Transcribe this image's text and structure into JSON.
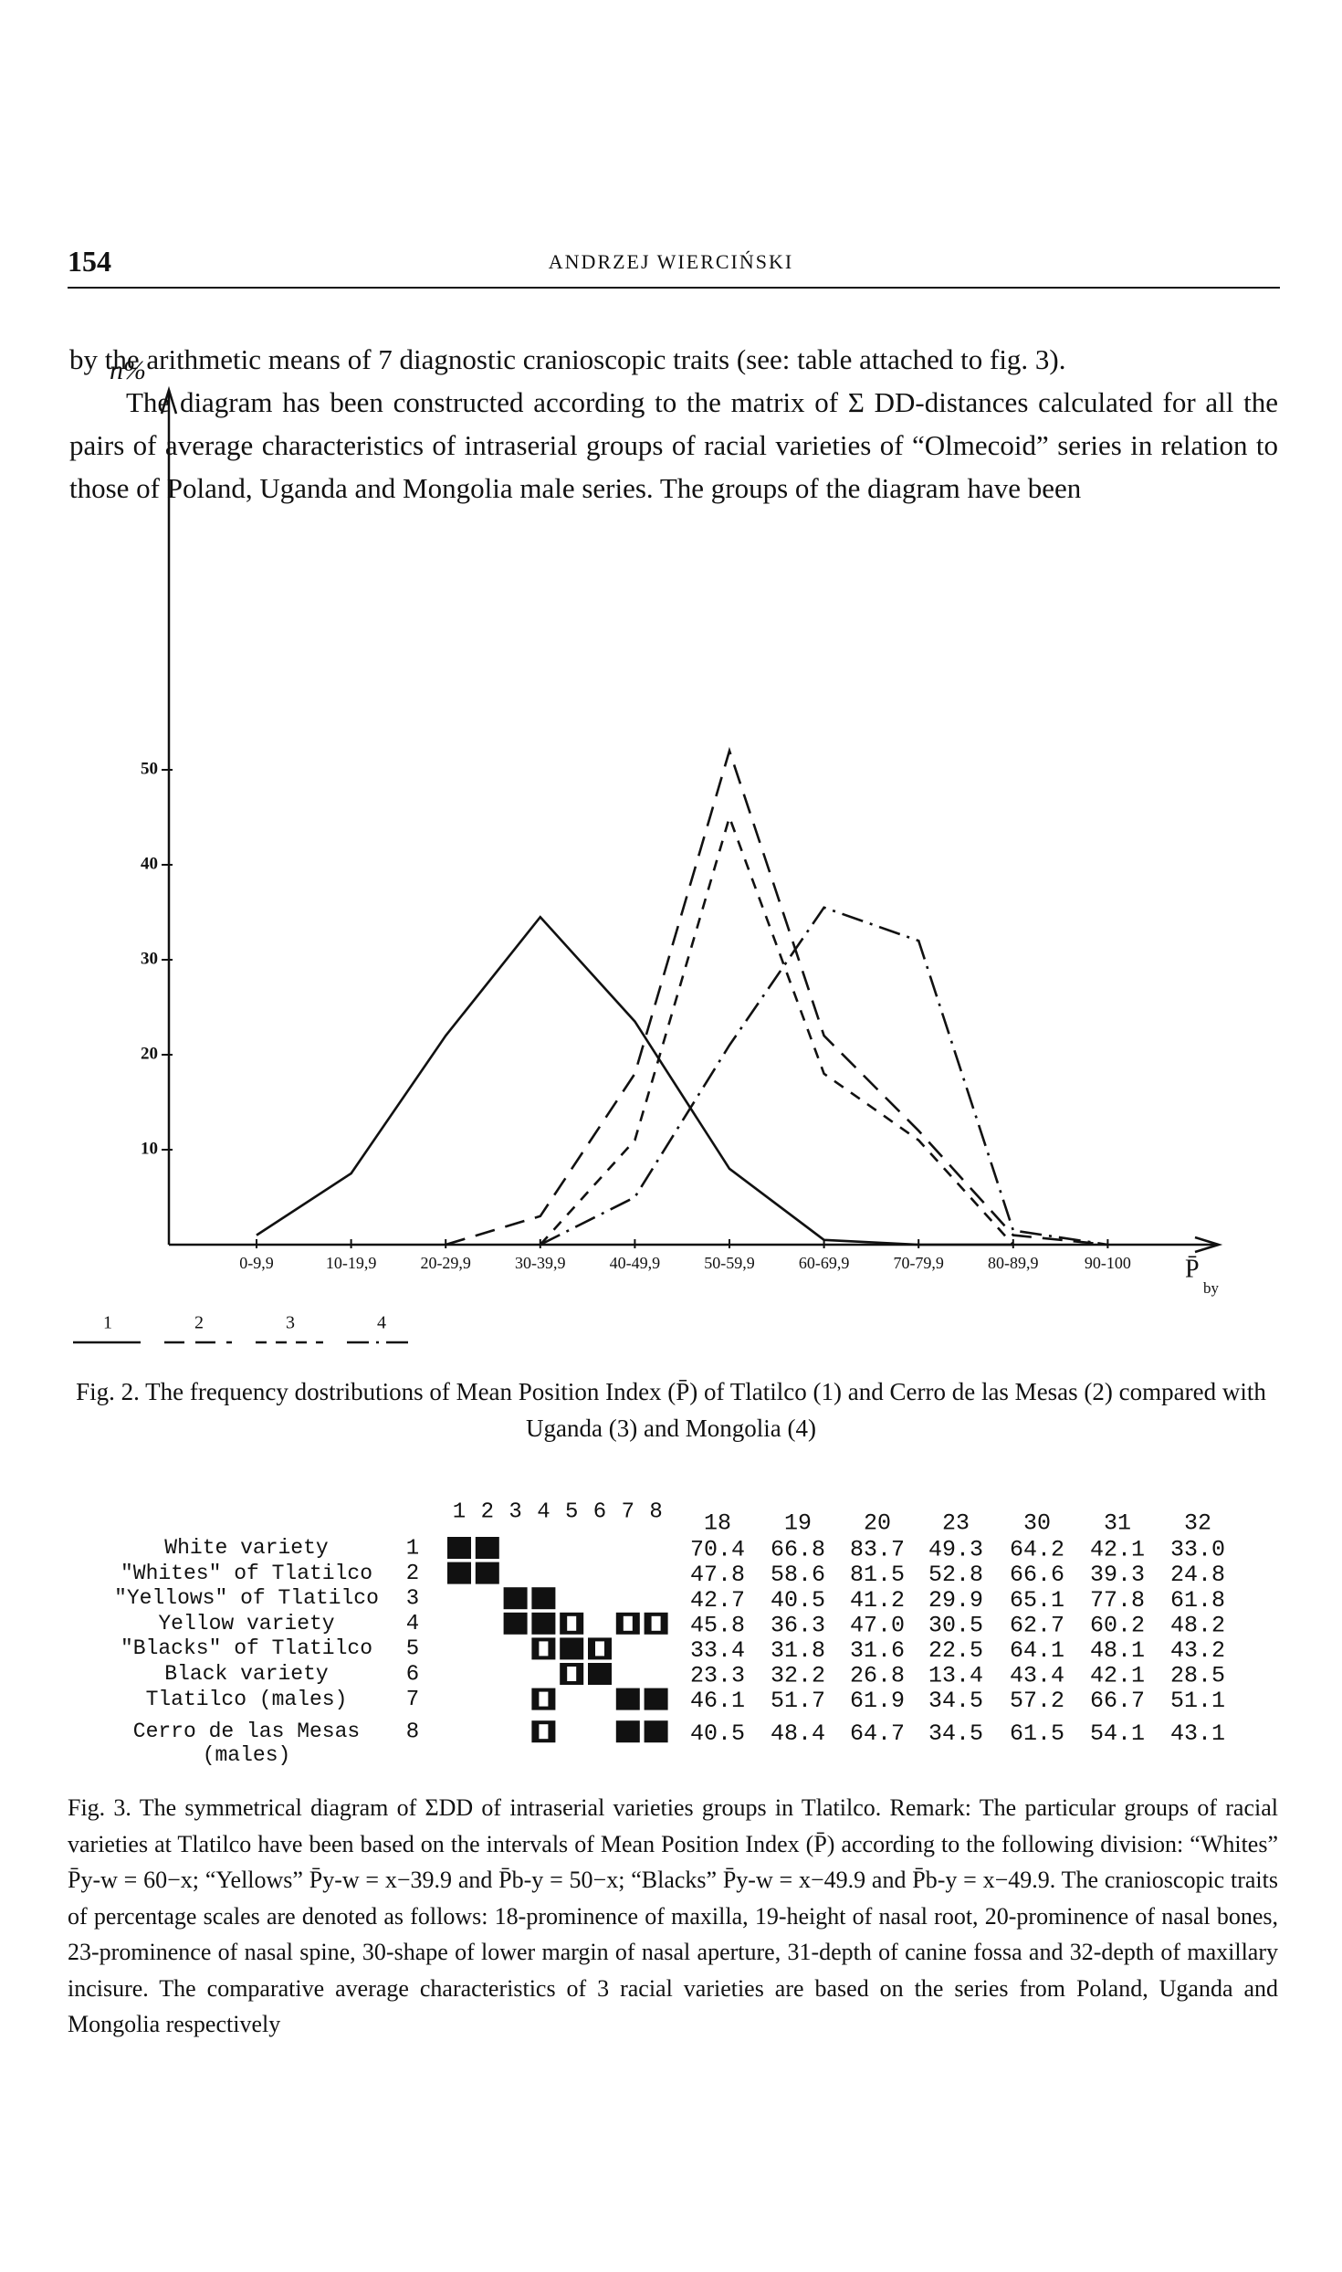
{
  "header": {
    "page_number": "154",
    "author": "ANDRZEJ WIERCIŃSKI"
  },
  "body": {
    "paragraphs": [
      "by the arithmetic means of 7 diagnostic cranioscopic traits (see: table attached to fig. 3).",
      "The diagram has been constructed according to the matrix of Σ DD-distances calculated for all the pairs of average characteristics of intraserial groups of racial varieties of “Olmecoid” series in relation to those of Poland, Uganda and Mongolia male series. The groups of the diagram have been"
    ]
  },
  "chart_data": {
    "type": "line",
    "y_label": "n%",
    "x_label": "P̄",
    "x_label_sub": "by",
    "categories": [
      "0-9,9",
      "10-19,9",
      "20-29,9",
      "30-39,9",
      "40-49,9",
      "50-59,9",
      "60-69,9",
      "70-79,9",
      "80-89,9",
      "90-100"
    ],
    "series": [
      {
        "name": "1",
        "color": "#111111",
        "style": "solid",
        "values": [
          1,
          7.5,
          22,
          34.5,
          23.5,
          8,
          0.5,
          0,
          0,
          null
        ]
      },
      {
        "name": "2",
        "color": "#111111",
        "style": "dashed",
        "values": [
          null,
          null,
          0,
          3,
          18,
          52,
          22,
          12,
          1,
          0
        ]
      },
      {
        "name": "3",
        "color": "#111111",
        "style": "short-dashed",
        "values": [
          null,
          null,
          null,
          0,
          11,
          45,
          18,
          11,
          0,
          null
        ]
      },
      {
        "name": "4",
        "color": "#111111",
        "style": "dash-dot",
        "values": [
          null,
          null,
          null,
          0,
          5,
          21,
          35.5,
          32,
          1.5,
          0
        ]
      }
    ],
    "ylim": [
      0,
      90
    ],
    "yticks": [
      10,
      20,
      30,
      40,
      50
    ],
    "grid": false,
    "caption": "Fig. 2. The frequency dostributions of Mean Position Index (P̄) of Tlatilco (1) and Cerro de las Mesas (2) compared with Uganda (3) and Mongolia (4)"
  },
  "figure_3": {
    "column_numbers": [
      "1",
      "2",
      "3",
      "4",
      "5",
      "6",
      "7",
      "8"
    ],
    "trait_headers": [
      "18",
      "19",
      "20",
      "23",
      "30",
      "31",
      "32"
    ],
    "rows": [
      {
        "index": "1",
        "label": "White variety",
        "values": [
          "70.4",
          "66.8",
          "83.7",
          "49.3",
          "64.2",
          "42.1",
          "33.0"
        ]
      },
      {
        "index": "2",
        "label": "\"Whites\" of Tlatilco",
        "values": [
          "47.8",
          "58.6",
          "81.5",
          "52.8",
          "66.6",
          "39.3",
          "24.8"
        ]
      },
      {
        "index": "3",
        "label": "\"Yellows\" of Tlatilco",
        "values": [
          "42.7",
          "40.5",
          "41.2",
          "29.9",
          "65.1",
          "77.8",
          "61.8"
        ]
      },
      {
        "index": "4",
        "label": "Yellow variety",
        "values": [
          "45.8",
          "36.3",
          "47.0",
          "30.5",
          "62.7",
          "60.2",
          "48.2"
        ]
      },
      {
        "index": "5",
        "label": "\"Blacks\" of Tlatilco",
        "values": [
          "33.4",
          "31.8",
          "31.6",
          "22.5",
          "64.1",
          "48.1",
          "43.2"
        ]
      },
      {
        "index": "6",
        "label": "Black variety",
        "values": [
          "23.3",
          "32.2",
          "26.8",
          "13.4",
          "43.4",
          "42.1",
          "28.5"
        ]
      },
      {
        "index": "7",
        "label": "Tlatilco (males)",
        "values": [
          "46.1",
          "51.7",
          "61.9",
          "34.5",
          "57.2",
          "66.7",
          "51.1"
        ]
      },
      {
        "index": "8",
        "label": "Cerro de las Mesas (males)",
        "values": [
          "40.5",
          "48.4",
          "64.7",
          "34.5",
          "61.5",
          "54.1",
          "43.1"
        ]
      }
    ],
    "caption": "Fig. 3. The symmetrical diagram of ΣDD of intraserial varieties groups in Tlatilco. Remark: The particular groups of racial varieties at Tlatilco have been based on the intervals of Mean Position Index (P̄) according to the following division: “Whites” P̄y-w = 60−x; “Yellows” P̄y-w = x−39.9 and P̄b-y = 50−x; “Blacks” P̄y-w = x−49.9 and P̄b-y = x−49.9. The cranioscopic traits of percentage scales are denoted as follows: 18-prominence of maxilla, 19-height of nasal root, 20-prominence of nasal bones, 23-prominence of nasal spine, 30-shape of lower margin of nasal aperture, 31-depth of canine fossa and 32-depth of maxillary incisure. The comparative average characteristics of 3 racial varieties are based on the series from Poland, Uganda and Mongolia respectively"
  }
}
